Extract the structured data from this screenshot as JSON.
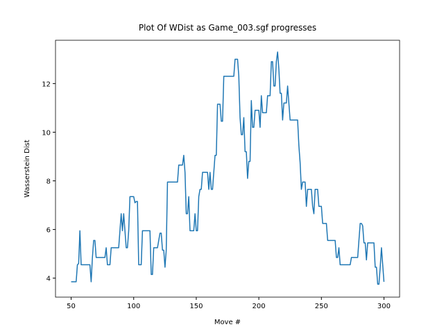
{
  "chart_data": {
    "type": "line",
    "title": "Plot Of WDist as Game_003.sgf progresses",
    "x_label": "Move #",
    "y_label": "Wasserstein Dist",
    "xlim": [
      37.5,
      312.5
    ],
    "ylim": [
      3.22,
      13.78
    ],
    "xticks": [
      50,
      100,
      150,
      200,
      250,
      300
    ],
    "yticks": [
      4,
      6,
      8,
      10,
      12
    ],
    "x": [
      50,
      54,
      55,
      56,
      57,
      58,
      65,
      66,
      67,
      68,
      69,
      70,
      77,
      78,
      79,
      81,
      82,
      88,
      89,
      90,
      91,
      92,
      93,
      94,
      95,
      96,
      97,
      100,
      101,
      102,
      103,
      104,
      106,
      107,
      113,
      114,
      115,
      116,
      119,
      121,
      122,
      123,
      124,
      125,
      126,
      127,
      135,
      136,
      139,
      140,
      141,
      142,
      143,
      144,
      145,
      148,
      149,
      150,
      151,
      152,
      153,
      154,
      155,
      159,
      160,
      161,
      162,
      163,
      164,
      165,
      166,
      167,
      169,
      170,
      171,
      172,
      180,
      181,
      183,
      184,
      185,
      186,
      187,
      188,
      189,
      190,
      191,
      192,
      193,
      194,
      195,
      196,
      197,
      200,
      201,
      202,
      203,
      206,
      207,
      209,
      210,
      211,
      212,
      213,
      214,
      215,
      216,
      217,
      218,
      219,
      220,
      222,
      223,
      224,
      225,
      231,
      232,
      233,
      234,
      235,
      237,
      238,
      239,
      242,
      243,
      244,
      245,
      247,
      248,
      250,
      251,
      254,
      255,
      261,
      262,
      263,
      264,
      265,
      273,
      274,
      279,
      280,
      281,
      282,
      283,
      284,
      285,
      286,
      287,
      292,
      293,
      294,
      295,
      296,
      297,
      298,
      300
    ],
    "series": [
      {
        "name": "WDist",
        "color": "#1f77b4",
        "values": [
          3.85,
          3.85,
          4.55,
          4.6,
          5.95,
          4.55,
          4.55,
          3.85,
          4.85,
          5.55,
          5.55,
          4.85,
          4.85,
          5.25,
          4.55,
          4.55,
          5.25,
          5.25,
          5.95,
          6.65,
          5.95,
          6.65,
          5.95,
          5.25,
          5.25,
          5.95,
          7.35,
          7.35,
          7.1,
          7.15,
          7.15,
          4.55,
          4.55,
          5.95,
          5.95,
          4.15,
          4.15,
          5.25,
          5.25,
          5.85,
          5.85,
          5.15,
          5.15,
          4.45,
          5.15,
          7.95,
          7.95,
          8.65,
          8.65,
          9.05,
          8.35,
          6.65,
          6.65,
          7.35,
          5.95,
          5.95,
          6.65,
          5.95,
          5.95,
          7.35,
          7.65,
          7.65,
          8.35,
          8.35,
          7.65,
          8.35,
          7.65,
          7.65,
          8.35,
          9.05,
          9.05,
          11.15,
          11.15,
          10.45,
          10.45,
          12.3,
          12.3,
          13.0,
          13.0,
          12.3,
          10.6,
          9.9,
          9.9,
          10.6,
          9.2,
          9.2,
          8.1,
          8.8,
          8.8,
          11.3,
          10.2,
          10.2,
          10.9,
          10.9,
          10.2,
          11.5,
          10.8,
          10.8,
          11.5,
          11.5,
          12.9,
          12.9,
          11.9,
          11.9,
          12.9,
          13.3,
          12.6,
          11.6,
          11.6,
          10.5,
          11.2,
          11.2,
          11.9,
          11.2,
          10.5,
          10.5,
          9.45,
          8.75,
          7.65,
          7.95,
          7.95,
          6.95,
          7.65,
          7.65,
          6.95,
          6.65,
          7.65,
          7.65,
          6.95,
          6.95,
          6.25,
          6.25,
          5.55,
          5.55,
          4.85,
          4.85,
          5.25,
          4.55,
          4.55,
          4.85,
          4.85,
          5.55,
          6.25,
          6.25,
          6.15,
          5.45,
          5.45,
          4.75,
          5.45,
          5.45,
          4.45,
          4.45,
          3.75,
          3.75,
          4.45,
          5.25,
          3.85
        ]
      }
    ]
  }
}
